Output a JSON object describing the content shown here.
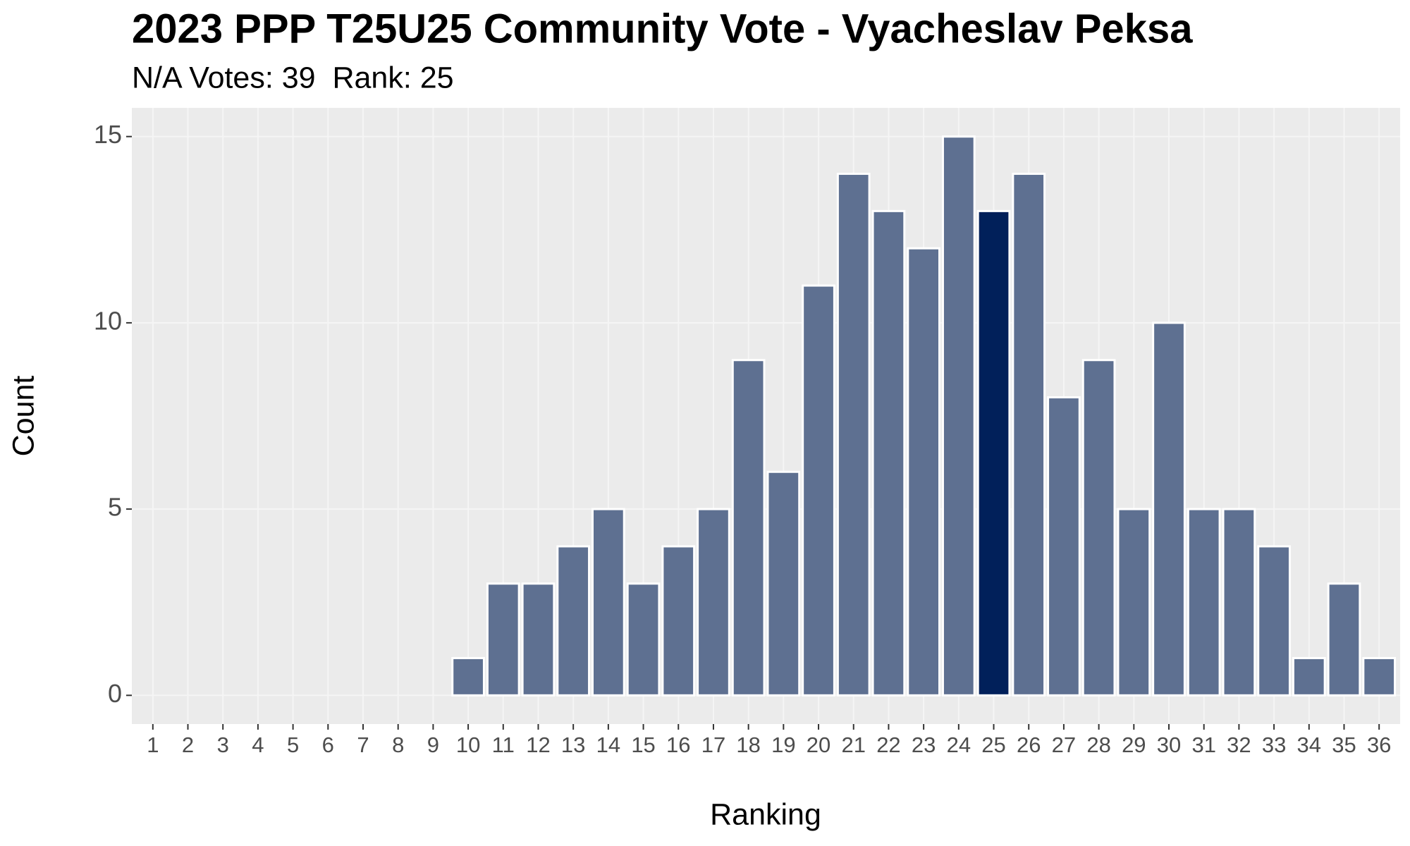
{
  "chart_data": {
    "type": "bar",
    "title": "2023 PPP T25U25 Community Vote - Vyacheslav Peksa",
    "subtitle": "N/A Votes: 39  Rank: 25",
    "x_label": "Ranking",
    "y_label": "Count",
    "categories": [
      "1",
      "2",
      "3",
      "4",
      "5",
      "6",
      "7",
      "8",
      "9",
      "10",
      "11",
      "12",
      "13",
      "14",
      "15",
      "16",
      "17",
      "18",
      "19",
      "20",
      "21",
      "22",
      "23",
      "24",
      "25",
      "26",
      "27",
      "28",
      "29",
      "30",
      "31",
      "32",
      "33",
      "34",
      "35",
      "36"
    ],
    "values": [
      0,
      0,
      0,
      0,
      0,
      0,
      0,
      0,
      0,
      1,
      3,
      3,
      4,
      5,
      3,
      4,
      5,
      9,
      6,
      11,
      14,
      13,
      12,
      15,
      13,
      14,
      8,
      9,
      5,
      10,
      5,
      5,
      4,
      1,
      3,
      1
    ],
    "color": "#5e7091",
    "highlight": "25",
    "highlight_color": "#01205a",
    "ylim": [
      -0.77,
      15.77
    ],
    "yticks": [
      0,
      5,
      10,
      15
    ],
    "grid": true
  }
}
